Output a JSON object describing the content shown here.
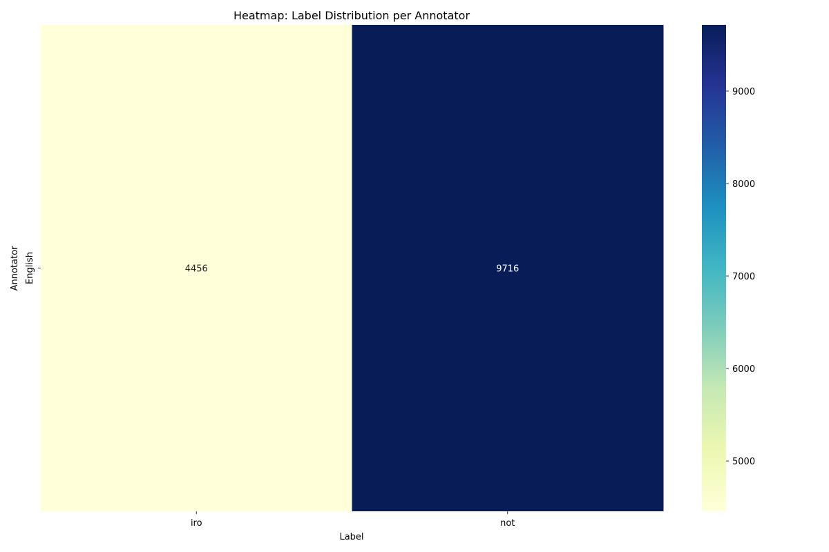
{
  "chart_data": {
    "type": "heatmap",
    "title": "Heatmap: Label Distribution per Annotator",
    "xlabel": "Label",
    "ylabel": "Annotator",
    "x_categories": [
      "iro",
      "not"
    ],
    "y_categories": [
      "English"
    ],
    "values": [
      [
        4456,
        9716
      ]
    ],
    "colormap": "YlGnBu",
    "colorbar": {
      "range": [
        4456,
        9716
      ],
      "ticks": [
        5000,
        6000,
        7000,
        8000,
        9000
      ]
    },
    "cell_label_colors": {
      "light_cell": "#262626",
      "dark_cell": "#ffffff"
    }
  }
}
